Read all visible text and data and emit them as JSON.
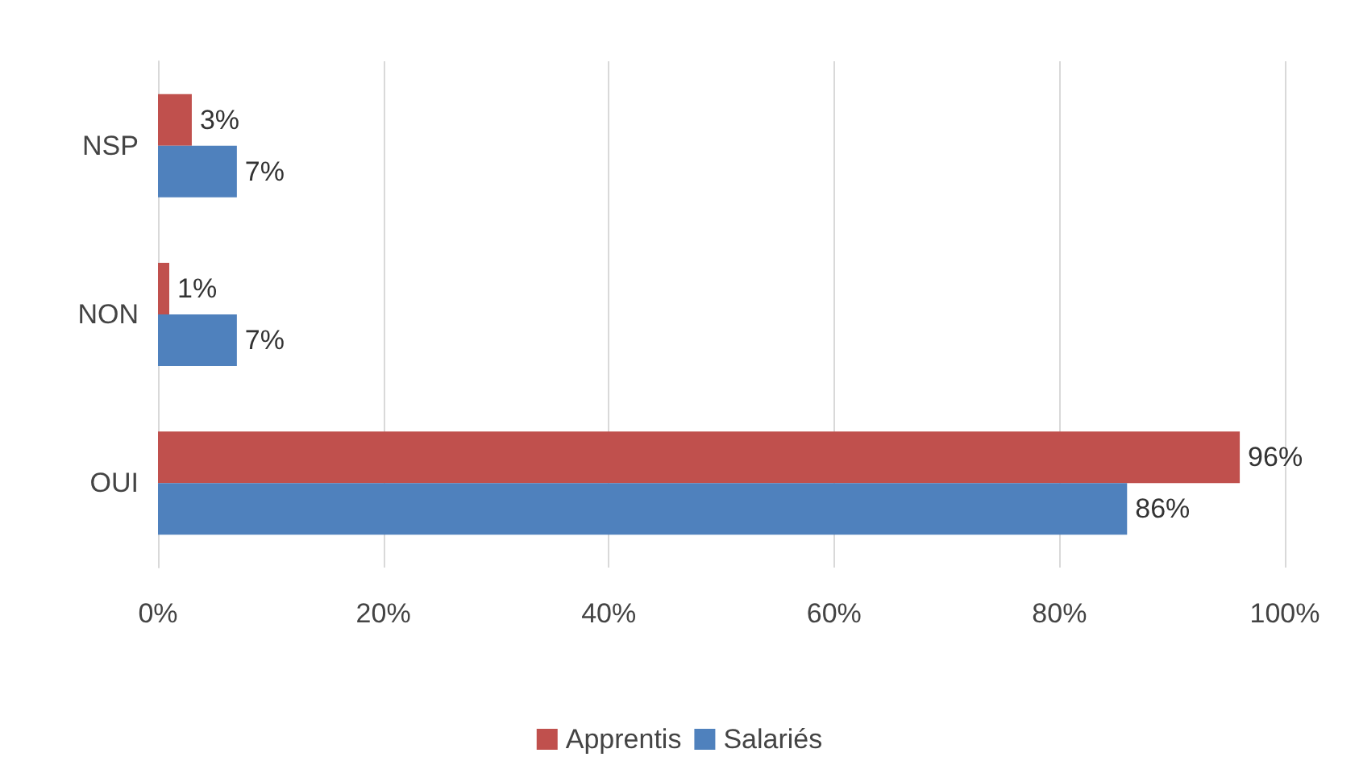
{
  "chart_data": {
    "type": "bar",
    "orientation": "horizontal",
    "categories": [
      "NSP",
      "NON",
      "OUI"
    ],
    "series": [
      {
        "name": "Apprentis",
        "color": "#c0504d",
        "values": [
          3,
          1,
          96
        ],
        "value_labels": [
          "3%",
          "1%",
          "96%"
        ]
      },
      {
        "name": "Salariés",
        "color": "#4f81bd",
        "values": [
          7,
          7,
          86
        ],
        "value_labels": [
          "7%",
          "7%",
          "86%"
        ]
      }
    ],
    "xlim": [
      0,
      100
    ],
    "xticks": [
      {
        "value": 0,
        "label": "0%"
      },
      {
        "value": 20,
        "label": "20%"
      },
      {
        "value": 40,
        "label": "40%"
      },
      {
        "value": 60,
        "label": "60%"
      },
      {
        "value": 80,
        "label": "80%"
      },
      {
        "value": 100,
        "label": "100%"
      }
    ],
    "grid": "x",
    "legend": "bottom"
  }
}
